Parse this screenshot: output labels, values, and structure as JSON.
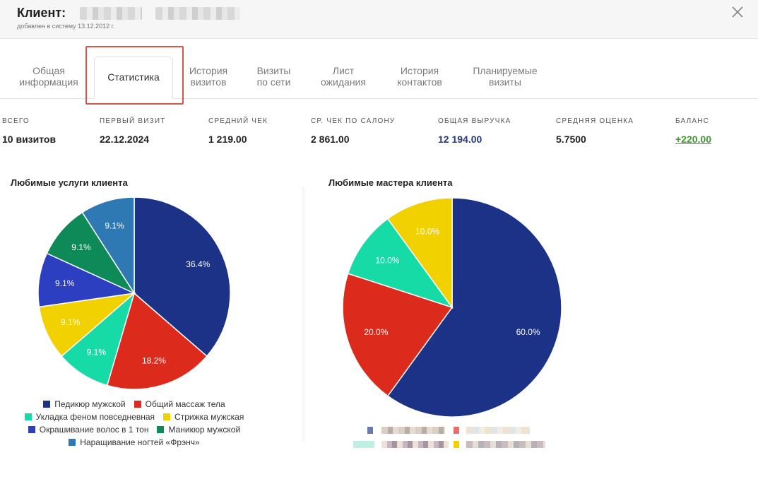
{
  "header": {
    "client_label": "Клиент:",
    "added": "добавлен в систему 13.12.2012 г."
  },
  "tabs": [
    {
      "label": "Общая\nинформация"
    },
    {
      "label": "Статистика"
    },
    {
      "label": "История\nвизитов"
    },
    {
      "label": "Визиты\nпо сети"
    },
    {
      "label": "Лист\nожидания"
    },
    {
      "label": "История\nконтактов"
    },
    {
      "label": "Планируемые\nвизиты"
    }
  ],
  "active_tab": "Статистика",
  "stats": [
    {
      "label": "ВСЕГО",
      "value": "10 визитов"
    },
    {
      "label": "ПЕРВЫЙ ВИЗИТ",
      "value": "22.12.2024"
    },
    {
      "label": "СРЕДНИЙ ЧЕК",
      "value": "1 219.00"
    },
    {
      "label": "СР. ЧЕК ПО САЛОНУ",
      "value": "2 861.00"
    },
    {
      "label": "ОБЩАЯ ВЫРУЧКА",
      "value": "12 194.00"
    },
    {
      "label": "СРЕДНЯЯ ОЦЕНКА",
      "value": "5.7500"
    },
    {
      "label": "БАЛАНС",
      "value": "+220.00"
    }
  ],
  "colors": {
    "navy": "#1c3287",
    "red": "#dc2a1c",
    "teal": "#17dba6",
    "yellow": "#f2d100",
    "blue": "#2b3fc0",
    "green": "#0e8a58",
    "steel": "#2e78b4",
    "highlight": "#d9534f"
  },
  "chart_data": [
    {
      "type": "pie",
      "title": "Любимые услуги клиента",
      "slices": [
        {
          "name": "Педикюр мужской",
          "value": 36.4,
          "label": "36.4%",
          "color": "#1c3287"
        },
        {
          "name": "Общий массаж тела",
          "value": 18.2,
          "label": "18.2%",
          "color": "#dc2a1c"
        },
        {
          "name": "Укладка феном повседневная",
          "value": 9.1,
          "label": "9.1%",
          "color": "#17dba6"
        },
        {
          "name": "Стрижка мужская",
          "value": 9.1,
          "label": "9.1%",
          "color": "#f2d100"
        },
        {
          "name": "Окрашивание волос в 1 тон",
          "value": 9.1,
          "label": "9.1%",
          "color": "#2b3fc0"
        },
        {
          "name": "Маникюр мужской",
          "value": 9.1,
          "label": "9.1%",
          "color": "#0e8a58"
        },
        {
          "name": "Наращивание ногтей «Фрэнч»",
          "value": 9.1,
          "label": "9.1%",
          "color": "#2e78b4"
        }
      ]
    },
    {
      "type": "pie",
      "title": "Любимые мастера клиента",
      "slices": [
        {
          "value": 60.0,
          "label": "60.0%",
          "color": "#1c3287"
        },
        {
          "value": 20.0,
          "label": "20.0%",
          "color": "#dc2a1c"
        },
        {
          "value": 10.0,
          "label": "10.0%",
          "color": "#17dba6"
        },
        {
          "value": 10.0,
          "label": "10.0%",
          "color": "#f2d100"
        }
      ]
    }
  ]
}
